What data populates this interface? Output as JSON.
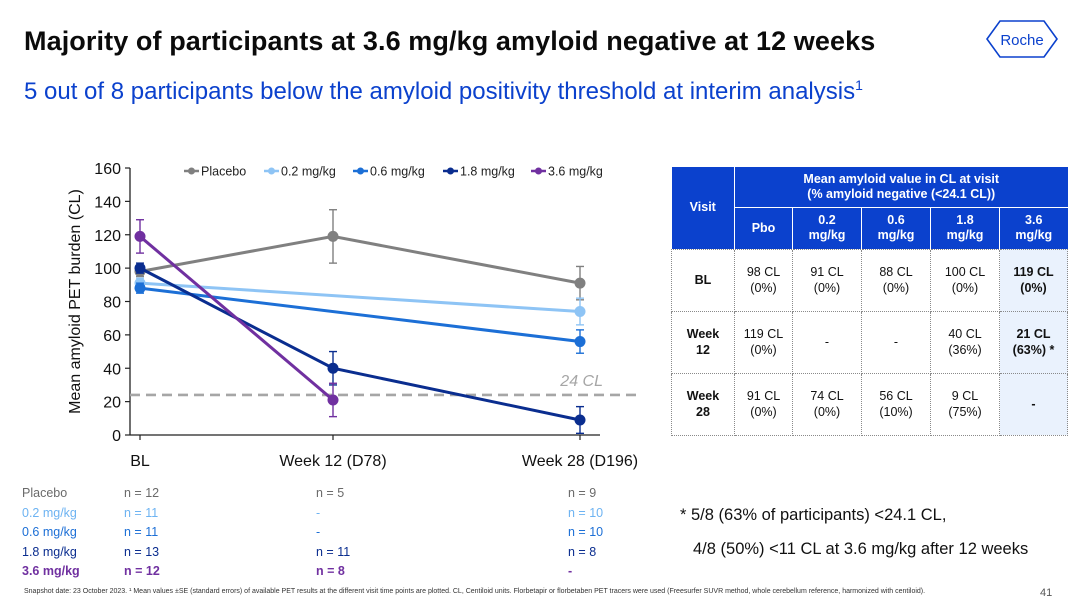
{
  "slide": {
    "title": "Majority of participants at 3.6 mg/kg amyloid negative at 12 weeks",
    "subtitle": "5 out of 8 participants below the amyloid positivity threshold at interim analysis",
    "subtitle_sup": "1",
    "logo_text": "Roche",
    "page_number": "41",
    "snapshot_note": "Snapshot date: 23 October 2023. ¹ Mean values ±SE (standard errors) of available PET results at the different visit time points are plotted. CL, Centiloid units. Florbetapir or florbetaben PET tracers were used (Freesurfer SUVR method, whole cerebellum reference, harmonized with centiloid).",
    "footnote_line1": "* 5/8 (63% of participants)  <24.1 CL,",
    "footnote_line2": "4/8 (50%) <11 CL at 3.6 mg/kg after 12 weeks"
  },
  "chart_data": {
    "type": "line",
    "ylabel": "Mean amyloid PET burden (CL)",
    "xlabel": "",
    "categories": [
      "BL",
      "Week 12 (D78)",
      "Week 28 (D196)"
    ],
    "ylim": [
      0,
      160
    ],
    "yticks": [
      0,
      20,
      40,
      60,
      80,
      100,
      120,
      140,
      160
    ],
    "threshold": {
      "value": 24,
      "label": "24 CL"
    },
    "legend_position": "top",
    "series": [
      {
        "name": "Placebo",
        "color": "#808080",
        "values": [
          98,
          119,
          91
        ],
        "err": [
          3,
          16,
          10
        ]
      },
      {
        "name": "0.2 mg/kg",
        "color": "#8ec4f5",
        "values": [
          91,
          null,
          74
        ],
        "err": [
          3,
          null,
          8
        ]
      },
      {
        "name": "0.6 mg/kg",
        "color": "#1c6fd6",
        "values": [
          88,
          null,
          56
        ],
        "err": [
          3,
          null,
          7
        ]
      },
      {
        "name": "1.8 mg/kg",
        "color": "#0a2d8f",
        "values": [
          100,
          40,
          9
        ],
        "err": [
          3,
          10,
          8
        ]
      },
      {
        "name": "3.6 mg/kg",
        "color": "#7030a0",
        "values": [
          119,
          21,
          null
        ],
        "err": [
          10,
          10,
          null
        ]
      }
    ]
  },
  "n_table": [
    {
      "label": "Placebo",
      "color": "#6a6a6a",
      "bold": false,
      "n": [
        "n = 12",
        "n = 5",
        "n = 9"
      ]
    },
    {
      "label": "0.2 mg/kg",
      "color": "#6db3f2",
      "bold": false,
      "n": [
        "n = 11",
        "-",
        "n = 10"
      ]
    },
    {
      "label": "0.6 mg/kg",
      "color": "#1c6fd6",
      "bold": false,
      "n": [
        "n = 11",
        "-",
        "n = 10"
      ]
    },
    {
      "label": "1.8 mg/kg",
      "color": "#0a2d8f",
      "bold": false,
      "n": [
        "n = 13",
        "n = 11",
        "n = 8"
      ]
    },
    {
      "label": "3.6 mg/kg",
      "color": "#7030a0",
      "bold": true,
      "n": [
        "n = 12",
        "n = 8",
        "-"
      ]
    }
  ],
  "value_table": {
    "header_visit": "Visit",
    "header_group": "Mean amyloid value in CL at visit\n(% amyloid negative (<24.1 CL))",
    "columns": [
      "Pbo",
      "0.2\nmg/kg",
      "0.6\nmg/kg",
      "1.8\nmg/kg",
      "3.6\nmg/kg"
    ],
    "rows": [
      {
        "visit": "BL",
        "cells": [
          "98 CL\n(0%)",
          "91 CL\n(0%)",
          "88 CL\n(0%)",
          "100 CL\n(0%)",
          "119 CL\n(0%)"
        ]
      },
      {
        "visit": "Week\n12",
        "cells": [
          "119 CL\n(0%)",
          "-",
          "-",
          "40 CL\n(36%)",
          "21 CL\n(63%) *"
        ]
      },
      {
        "visit": "Week\n28",
        "cells": [
          "91 CL\n(0%)",
          "74 CL\n(0%)",
          "56 CL\n(10%)",
          "9 CL\n(75%)",
          "-"
        ]
      }
    ]
  }
}
